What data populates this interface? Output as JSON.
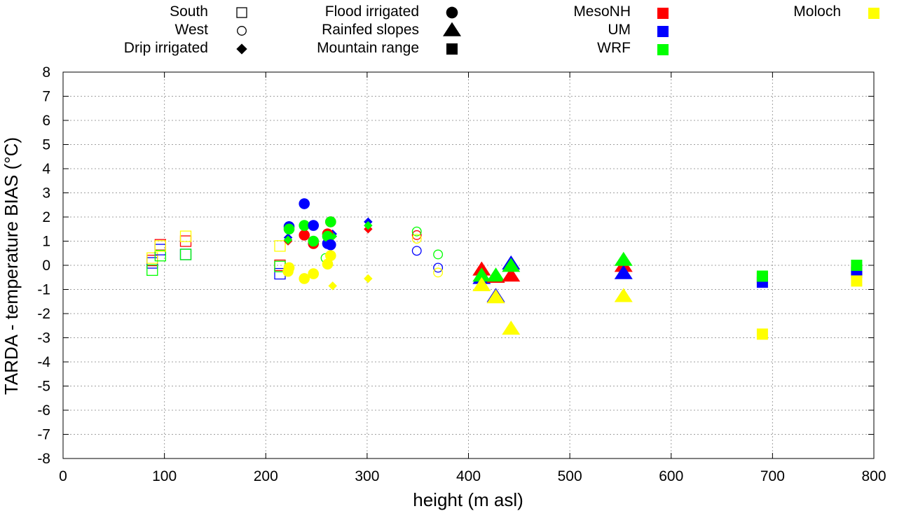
{
  "chart_data": {
    "type": "scatter",
    "xlabel": "height (m asl)",
    "ylabel": "TARDA - temperature BIAS (°C)",
    "xlim": [
      0,
      800
    ],
    "ylim": [
      -8,
      8
    ],
    "xticks": [
      0,
      100,
      200,
      300,
      400,
      500,
      600,
      700,
      800
    ],
    "yticks": [
      -8,
      -7,
      -6,
      -5,
      -4,
      -3,
      -2,
      -1,
      0,
      1,
      2,
      3,
      4,
      5,
      6,
      7,
      8
    ],
    "grid": true,
    "legend": {
      "shapes": [
        {
          "label": "South",
          "marker": "open-square"
        },
        {
          "label": "West",
          "marker": "open-circle"
        },
        {
          "label": "Drip irrigated",
          "marker": "diamond"
        },
        {
          "label": "Flood irrigated",
          "marker": "circle"
        },
        {
          "label": "Rainfed slopes",
          "marker": "triangle"
        },
        {
          "label": "Mountain range",
          "marker": "square"
        }
      ],
      "models": [
        {
          "label": "MesoNH",
          "color": "#ff0000"
        },
        {
          "label": "UM",
          "color": "#0000ff"
        },
        {
          "label": "WRF",
          "color": "#00ff00"
        },
        {
          "label": "Moloch",
          "color": "#ffff00"
        }
      ]
    },
    "series": [
      {
        "name": "South",
        "marker": "open-square",
        "points": [
          {
            "x": 88,
            "y": 0.2,
            "model": "MesoNH"
          },
          {
            "x": 88,
            "y": 0.1,
            "model": "UM"
          },
          {
            "x": 88,
            "y": -0.2,
            "model": "WRF"
          },
          {
            "x": 88,
            "y": 0.3,
            "model": "Moloch"
          },
          {
            "x": 96,
            "y": 0.85,
            "model": "MesoNH"
          },
          {
            "x": 96,
            "y": 0.65,
            "model": "UM"
          },
          {
            "x": 96,
            "y": 0.4,
            "model": "WRF"
          },
          {
            "x": 96,
            "y": 0.8,
            "model": "Moloch"
          },
          {
            "x": 121,
            "y": 1.0,
            "model": "MesoNH"
          },
          {
            "x": 121,
            "y": 0.45,
            "model": "UM"
          },
          {
            "x": 121,
            "y": 0.45,
            "model": "WRF"
          },
          {
            "x": 121,
            "y": 1.2,
            "model": "Moloch"
          },
          {
            "x": 214,
            "y": 0.0,
            "model": "MesoNH"
          },
          {
            "x": 214,
            "y": -0.35,
            "model": "UM"
          },
          {
            "x": 214,
            "y": -0.05,
            "model": "WRF"
          },
          {
            "x": 214,
            "y": 0.8,
            "model": "Moloch"
          }
        ]
      },
      {
        "name": "West",
        "marker": "open-circle",
        "points": [
          {
            "x": 259,
            "y": 0.3,
            "model": "WRF"
          },
          {
            "x": 349,
            "y": 1.25,
            "model": "MesoNH"
          },
          {
            "x": 349,
            "y": 0.6,
            "model": "UM"
          },
          {
            "x": 349,
            "y": 1.4,
            "model": "WRF"
          },
          {
            "x": 349,
            "y": 1.1,
            "model": "Moloch"
          },
          {
            "x": 370,
            "y": -0.1,
            "model": "UM"
          },
          {
            "x": 370,
            "y": 0.45,
            "model": "WRF"
          },
          {
            "x": 370,
            "y": -0.3,
            "model": "Moloch"
          }
        ]
      },
      {
        "name": "Drip irrigated",
        "marker": "diamond",
        "points": [
          {
            "x": 222,
            "y": 1.0,
            "model": "MesoNH"
          },
          {
            "x": 222,
            "y": 1.15,
            "model": "UM"
          },
          {
            "x": 222,
            "y": 1.05,
            "model": "WRF"
          },
          {
            "x": 266,
            "y": 1.2,
            "model": "MesoNH"
          },
          {
            "x": 266,
            "y": 1.3,
            "model": "UM"
          },
          {
            "x": 266,
            "y": 1.2,
            "model": "WRF"
          },
          {
            "x": 266,
            "y": -0.85,
            "model": "Moloch"
          },
          {
            "x": 301,
            "y": 1.5,
            "model": "MesoNH"
          },
          {
            "x": 301,
            "y": 1.8,
            "model": "UM"
          },
          {
            "x": 301,
            "y": 1.65,
            "model": "WRF"
          },
          {
            "x": 301,
            "y": -0.55,
            "model": "Moloch"
          }
        ]
      },
      {
        "name": "Flood irrigated",
        "marker": "circle",
        "points": [
          {
            "x": 223,
            "y": 1.6,
            "model": "UM"
          },
          {
            "x": 223,
            "y": 1.5,
            "model": "WRF"
          },
          {
            "x": 223,
            "y": -0.1,
            "model": "Moloch"
          },
          {
            "x": 222,
            "y": -0.25,
            "model": "Moloch"
          },
          {
            "x": 238,
            "y": 1.25,
            "model": "MesoNH"
          },
          {
            "x": 238,
            "y": 2.55,
            "model": "UM"
          },
          {
            "x": 238,
            "y": 1.65,
            "model": "WRF"
          },
          {
            "x": 238,
            "y": -0.55,
            "model": "Moloch"
          },
          {
            "x": 247,
            "y": 0.9,
            "model": "MesoNH"
          },
          {
            "x": 247,
            "y": 1.65,
            "model": "UM"
          },
          {
            "x": 247,
            "y": 1.0,
            "model": "WRF"
          },
          {
            "x": 247,
            "y": -0.35,
            "model": "Moloch"
          },
          {
            "x": 261,
            "y": 1.3,
            "model": "MesoNH"
          },
          {
            "x": 261,
            "y": 0.9,
            "model": "UM"
          },
          {
            "x": 261,
            "y": 1.2,
            "model": "WRF"
          },
          {
            "x": 261,
            "y": 0.05,
            "model": "Moloch"
          },
          {
            "x": 264,
            "y": 1.8,
            "model": "MesoNH"
          },
          {
            "x": 264,
            "y": 0.85,
            "model": "UM"
          },
          {
            "x": 264,
            "y": 1.8,
            "model": "WRF"
          },
          {
            "x": 264,
            "y": 0.4,
            "model": "Moloch"
          }
        ]
      },
      {
        "name": "Rainfed slopes",
        "marker": "triangle",
        "points": [
          {
            "x": 413,
            "y": -0.2,
            "model": "MesoNH"
          },
          {
            "x": 413,
            "y": -0.55,
            "model": "UM"
          },
          {
            "x": 413,
            "y": -0.45,
            "model": "WRF"
          },
          {
            "x": 413,
            "y": -0.85,
            "model": "Moloch"
          },
          {
            "x": 427,
            "y": -0.5,
            "model": "MesoNH"
          },
          {
            "x": 427,
            "y": -1.3,
            "model": "UM"
          },
          {
            "x": 427,
            "y": -0.45,
            "model": "WRF"
          },
          {
            "x": 427,
            "y": -1.35,
            "model": "Moloch"
          },
          {
            "x": 442,
            "y": -0.45,
            "model": "MesoNH"
          },
          {
            "x": 442,
            "y": 0.05,
            "model": "UM"
          },
          {
            "x": 442,
            "y": -0.05,
            "model": "WRF"
          },
          {
            "x": 442,
            "y": -2.65,
            "model": "Moloch"
          },
          {
            "x": 553,
            "y": -0.05,
            "model": "MesoNH"
          },
          {
            "x": 553,
            "y": -0.35,
            "model": "UM"
          },
          {
            "x": 553,
            "y": 0.2,
            "model": "WRF"
          },
          {
            "x": 553,
            "y": -1.3,
            "model": "Moloch"
          }
        ]
      },
      {
        "name": "Mountain range",
        "marker": "square",
        "points": [
          {
            "x": 690,
            "y": -0.5,
            "model": "MesoNH"
          },
          {
            "x": 690,
            "y": -0.7,
            "model": "UM"
          },
          {
            "x": 690,
            "y": -0.45,
            "model": "WRF"
          },
          {
            "x": 690,
            "y": -2.85,
            "model": "Moloch"
          },
          {
            "x": 783,
            "y": -0.2,
            "model": "MesoNH"
          },
          {
            "x": 783,
            "y": -0.3,
            "model": "UM"
          },
          {
            "x": 783,
            "y": 0.0,
            "model": "WRF"
          },
          {
            "x": 783,
            "y": -0.65,
            "model": "Moloch"
          }
        ]
      }
    ]
  },
  "colors": {
    "MesoNH": "#ff0000",
    "UM": "#0000ff",
    "WRF": "#00ff00",
    "Moloch": "#ffff00",
    "axis": "#000000",
    "grid": "#a0a0a0"
  }
}
